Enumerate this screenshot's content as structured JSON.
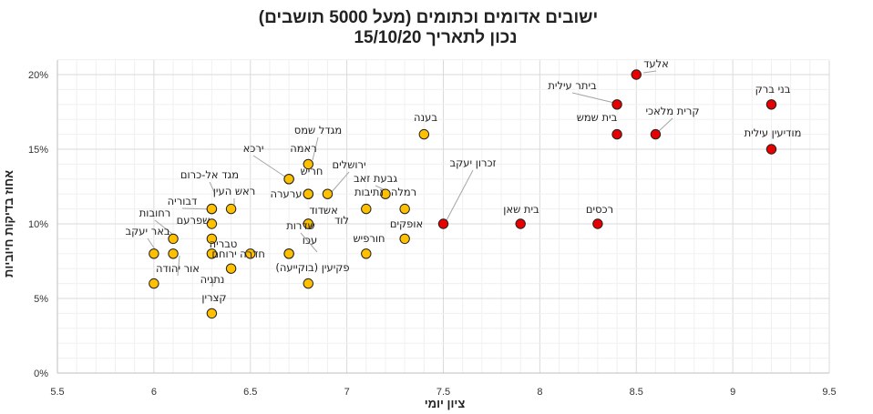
{
  "chart_data": {
    "type": "scatter",
    "title": [
      "ישובים אדומים וכתומים (מעל 5000 תושבים)",
      "נכון לתאריך 15/10/20"
    ],
    "xlabel": "ציון יומי",
    "ylabel": "אחוז בדיקות חיוביות",
    "xlim": [
      5.5,
      9.5
    ],
    "ylim": [
      0,
      0.22
    ],
    "x_ticks": [
      "5.5",
      "6",
      "6.5",
      "7",
      "7.5",
      "8",
      "8.5",
      "9",
      "9.5"
    ],
    "y_ticks": [
      "0%",
      "5%",
      "10%",
      "15%",
      "20%"
    ],
    "grid": true,
    "colors": {
      "red": "#e60000",
      "orange": "#ffc000",
      "marker_edge": "#222222"
    },
    "points": [
      {
        "label": "אלעד",
        "x": 8.5,
        "y": 0.2,
        "color": "red"
      },
      {
        "label": "ביתר עילית",
        "x": 8.4,
        "y": 0.18,
        "color": "red"
      },
      {
        "label": "בני ברק",
        "x": 9.2,
        "y": 0.18,
        "color": "red"
      },
      {
        "label": "בית שמש",
        "x": 8.4,
        "y": 0.16,
        "color": "red"
      },
      {
        "label": "קרית מלאכי",
        "x": 8.6,
        "y": 0.16,
        "color": "red"
      },
      {
        "label": "מודיעין עילית",
        "x": 9.2,
        "y": 0.15,
        "color": "red"
      },
      {
        "label": "זכרון יעקב",
        "x": 7.5,
        "y": 0.1,
        "color": "red"
      },
      {
        "label": "בית שאן",
        "x": 7.9,
        "y": 0.1,
        "color": "red"
      },
      {
        "label": "רכסים",
        "x": 8.3,
        "y": 0.1,
        "color": "red"
      },
      {
        "label": "בענה",
        "x": 7.4,
        "y": 0.16,
        "color": "orange"
      },
      {
        "label": "מגדל שמס",
        "x": 6.8,
        "y": 0.14,
        "color": "orange"
      },
      {
        "label": "ראמה",
        "x": 6.7,
        "y": 0.13,
        "color": "orange"
      },
      {
        "label": "ירכא",
        "x": 6.7,
        "y": 0.13,
        "color": "orange"
      },
      {
        "label": "חריש",
        "x": 6.8,
        "y": 0.12,
        "color": "orange"
      },
      {
        "label": "ירושלים",
        "x": 6.9,
        "y": 0.12,
        "color": "orange"
      },
      {
        "label": "ערערה",
        "x": 6.8,
        "y": 0.12,
        "color": "orange"
      },
      {
        "label": "גבעת זאב",
        "x": 7.2,
        "y": 0.12,
        "color": "orange"
      },
      {
        "label": "רמלה",
        "x": 7.3,
        "y": 0.11,
        "color": "orange"
      },
      {
        "label": "נתיבות",
        "x": 7.1,
        "y": 0.11,
        "color": "orange"
      },
      {
        "label": "אשדוד",
        "x": 6.8,
        "y": 0.1,
        "color": "orange"
      },
      {
        "label": "לוד",
        "x": 6.8,
        "y": 0.1,
        "color": "orange"
      },
      {
        "label": "אופקים",
        "x": 7.3,
        "y": 0.09,
        "color": "orange"
      },
      {
        "label": "חורפיש",
        "x": 7.1,
        "y": 0.08,
        "color": "orange"
      },
      {
        "label": "שדרות",
        "x": 6.7,
        "y": 0.08,
        "color": "orange"
      },
      {
        "label": "עכו",
        "x": 6.7,
        "y": 0.08,
        "color": "orange"
      },
      {
        "label": "פקיעין (בוקייעה)",
        "x": 6.8,
        "y": 0.06,
        "color": "orange"
      },
      {
        "label": "מגד אל-כרום",
        "x": 6.3,
        "y": 0.11,
        "color": "orange"
      },
      {
        "label": "ראש העין",
        "x": 6.4,
        "y": 0.11,
        "color": "orange"
      },
      {
        "label": "דבוריה",
        "x": 6.3,
        "y": 0.11,
        "color": "orange"
      },
      {
        "label": "רחובות",
        "x": 6.1,
        "y": 0.09,
        "color": "orange"
      },
      {
        "label": "שפרעם",
        "x": 6.3,
        "y": 0.1,
        "color": "orange"
      },
      {
        "label": "טבריה",
        "x": 6.3,
        "y": 0.09,
        "color": "orange"
      },
      {
        "label": "באר יעקב",
        "x": 6.0,
        "y": 0.08,
        "color": "orange"
      },
      {
        "label": "ירוחם",
        "x": 6.3,
        "y": 0.08,
        "color": "orange"
      },
      {
        "label": "חדרה",
        "x": 6.5,
        "y": 0.08,
        "color": "orange"
      },
      {
        "label": "אור יהודה",
        "x": 6.1,
        "y": 0.08,
        "color": "orange"
      },
      {
        "label": "נתניה",
        "x": 6.4,
        "y": 0.07,
        "color": "orange"
      },
      {
        "label": "קצרין",
        "x": 6.3,
        "y": 0.04,
        "color": "orange"
      },
      {
        "label": "",
        "x": 6.0,
        "y": 0.06,
        "color": "orange"
      }
    ]
  }
}
